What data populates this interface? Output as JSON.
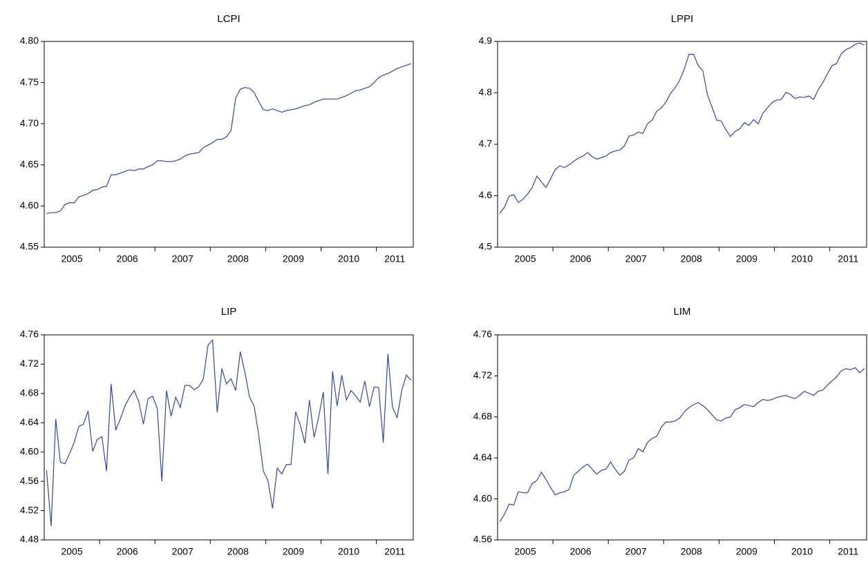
{
  "chart_data": [
    {
      "type": "line",
      "title": "LCPI",
      "color": "#33479a",
      "categories": [
        null,
        null,
        null,
        null,
        null,
        "2005",
        null,
        null,
        null,
        null,
        null,
        null,
        null,
        null,
        null,
        null,
        null,
        "2006",
        null,
        null,
        null,
        null,
        null,
        null,
        null,
        null,
        null,
        null,
        null,
        "2007",
        null,
        null,
        null,
        null,
        null,
        null,
        null,
        null,
        null,
        null,
        null,
        "2008",
        null,
        null,
        null,
        null,
        null,
        null,
        null,
        null,
        null,
        null,
        null,
        "2009",
        null,
        null,
        null,
        null,
        null,
        null,
        null,
        null,
        null,
        null,
        null,
        "2010",
        null,
        null,
        null,
        null,
        null,
        null,
        null,
        null,
        null,
        "2011",
        null,
        null,
        null,
        null
      ],
      "values": [
        4.591,
        4.592,
        4.592,
        4.594,
        4.602,
        4.604,
        4.604,
        4.611,
        4.613,
        4.615,
        4.619,
        4.62,
        4.623,
        4.624,
        4.638,
        4.638,
        4.64,
        4.642,
        4.644,
        4.643,
        4.645,
        4.645,
        4.648,
        4.65,
        4.655,
        4.655,
        4.654,
        4.654,
        4.655,
        4.657,
        4.661,
        4.663,
        4.664,
        4.665,
        4.671,
        4.674,
        4.677,
        4.681,
        4.681,
        4.684,
        4.692,
        4.731,
        4.742,
        4.744,
        4.743,
        4.738,
        4.727,
        4.717,
        4.716,
        4.718,
        4.716,
        4.714,
        4.716,
        4.717,
        4.718,
        4.72,
        4.722,
        4.723,
        4.726,
        4.728,
        4.73,
        4.73,
        4.73,
        4.73,
        4.732,
        4.734,
        4.737,
        4.74,
        4.741,
        4.743,
        4.745,
        4.75,
        4.756,
        4.759,
        4.761,
        4.764,
        4.767,
        4.769,
        4.771,
        4.773
      ],
      "ylim": [
        4.55,
        4.8
      ],
      "yticks": [
        4.55,
        {
          "value": 4.6,
          "label": "4.60"
        },
        4.65,
        {
          "value": 4.7,
          "label": "4.70"
        },
        4.75,
        {
          "value": 4.8,
          "label": "4.80"
        }
      ]
    },
    {
      "type": "line",
      "title": "LPPI",
      "color": "#33479a",
      "categories": [
        null,
        null,
        null,
        null,
        null,
        "2005",
        null,
        null,
        null,
        null,
        null,
        null,
        null,
        null,
        null,
        null,
        null,
        "2006",
        null,
        null,
        null,
        null,
        null,
        null,
        null,
        null,
        null,
        null,
        null,
        "2007",
        null,
        null,
        null,
        null,
        null,
        null,
        null,
        null,
        null,
        null,
        null,
        "2008",
        null,
        null,
        null,
        null,
        null,
        null,
        null,
        null,
        null,
        null,
        null,
        "2009",
        null,
        null,
        null,
        null,
        null,
        null,
        null,
        null,
        null,
        null,
        null,
        "2010",
        null,
        null,
        null,
        null,
        null,
        null,
        null,
        null,
        null,
        "2011",
        null,
        null,
        null,
        null
      ],
      "values": [
        4.566,
        4.578,
        4.599,
        4.602,
        4.587,
        4.593,
        4.603,
        4.616,
        4.638,
        4.627,
        4.616,
        4.633,
        4.651,
        4.658,
        4.655,
        4.66,
        4.667,
        4.673,
        4.677,
        4.684,
        4.676,
        4.671,
        4.674,
        4.677,
        4.684,
        4.687,
        4.689,
        4.697,
        4.716,
        4.718,
        4.724,
        4.721,
        4.74,
        4.747,
        4.764,
        4.771,
        4.782,
        4.799,
        4.81,
        4.825,
        4.847,
        4.875,
        4.875,
        4.853,
        4.843,
        4.796,
        4.772,
        4.747,
        4.745,
        4.728,
        4.715,
        4.725,
        4.73,
        4.742,
        4.737,
        4.748,
        4.74,
        4.76,
        4.771,
        4.781,
        4.786,
        4.787,
        4.801,
        4.797,
        4.789,
        4.792,
        4.791,
        4.794,
        4.787,
        4.806,
        4.82,
        4.837,
        4.853,
        4.857,
        4.876,
        4.884,
        4.888,
        4.894,
        4.897,
        4.893
      ],
      "ylim": [
        4.5,
        4.9
      ],
      "yticks": [
        4.5,
        4.6,
        4.7,
        4.8,
        4.9
      ]
    },
    {
      "type": "line",
      "title": "LIP",
      "color": "#33479a",
      "categories": [
        null,
        null,
        null,
        null,
        null,
        "2005",
        null,
        null,
        null,
        null,
        null,
        null,
        null,
        null,
        null,
        null,
        null,
        "2006",
        null,
        null,
        null,
        null,
        null,
        null,
        null,
        null,
        null,
        null,
        null,
        "2007",
        null,
        null,
        null,
        null,
        null,
        null,
        null,
        null,
        null,
        null,
        null,
        "2008",
        null,
        null,
        null,
        null,
        null,
        null,
        null,
        null,
        null,
        null,
        null,
        "2009",
        null,
        null,
        null,
        null,
        null,
        null,
        null,
        null,
        null,
        null,
        null,
        "2010",
        null,
        null,
        null,
        null,
        null,
        null,
        null,
        null,
        null,
        "2011",
        null,
        null,
        null,
        null
      ],
      "values": [
        4.575,
        4.499,
        4.645,
        4.586,
        4.584,
        4.598,
        4.613,
        4.635,
        4.638,
        4.656,
        4.601,
        4.617,
        4.621,
        4.574,
        4.693,
        4.63,
        4.645,
        4.663,
        4.675,
        4.684,
        4.669,
        4.638,
        4.673,
        4.676,
        4.66,
        4.56,
        4.684,
        4.649,
        4.675,
        4.661,
        4.691,
        4.691,
        4.685,
        4.689,
        4.7,
        4.746,
        4.753,
        4.654,
        4.714,
        4.693,
        4.7,
        4.684,
        4.737,
        4.709,
        4.675,
        4.663,
        4.623,
        4.574,
        4.561,
        4.523,
        4.578,
        4.57,
        4.583,
        4.583,
        4.655,
        4.637,
        4.612,
        4.671,
        4.62,
        4.648,
        4.682,
        4.57,
        4.71,
        4.663,
        4.705,
        4.671,
        4.684,
        4.677,
        4.668,
        4.697,
        4.662,
        4.689,
        4.688,
        4.613,
        4.734,
        4.661,
        4.647,
        4.684,
        4.705,
        4.698
      ],
      "ylim": [
        4.48,
        4.76
      ],
      "yticks": [
        4.48,
        4.52,
        4.56,
        {
          "value": 4.6,
          "label": "4.60"
        },
        4.64,
        4.68,
        4.72,
        4.76
      ]
    },
    {
      "type": "line",
      "title": "LIM",
      "color": "#33479a",
      "categories": [
        null,
        null,
        null,
        null,
        null,
        "2005",
        null,
        null,
        null,
        null,
        null,
        null,
        null,
        null,
        null,
        null,
        null,
        "2006",
        null,
        null,
        null,
        null,
        null,
        null,
        null,
        null,
        null,
        null,
        null,
        "2007",
        null,
        null,
        null,
        null,
        null,
        null,
        null,
        null,
        null,
        null,
        null,
        "2008",
        null,
        null,
        null,
        null,
        null,
        null,
        null,
        null,
        null,
        null,
        null,
        "2009",
        null,
        null,
        null,
        null,
        null,
        null,
        null,
        null,
        null,
        null,
        null,
        "2010",
        null,
        null,
        null,
        null,
        null,
        null,
        null,
        null,
        null,
        "2011",
        null,
        null,
        null,
        null
      ],
      "values": [
        4.578,
        4.585,
        4.595,
        4.594,
        4.607,
        4.606,
        4.606,
        4.615,
        4.618,
        4.626,
        4.619,
        4.611,
        4.604,
        4.606,
        4.607,
        4.609,
        4.623,
        4.627,
        4.631,
        4.634,
        4.629,
        4.624,
        4.628,
        4.629,
        4.636,
        4.629,
        4.623,
        4.627,
        4.638,
        4.64,
        4.649,
        4.646,
        4.655,
        4.659,
        4.661,
        4.67,
        4.675,
        4.675,
        4.676,
        4.679,
        4.685,
        4.689,
        4.692,
        4.694,
        4.691,
        4.687,
        4.682,
        4.677,
        4.676,
        4.679,
        4.68,
        4.687,
        4.689,
        4.692,
        4.691,
        4.69,
        4.694,
        4.697,
        4.696,
        4.697,
        4.699,
        4.7,
        4.701,
        4.699,
        4.698,
        4.701,
        4.705,
        4.703,
        4.701,
        4.705,
        4.706,
        4.711,
        4.715,
        4.719,
        4.725,
        4.727,
        4.726,
        4.728,
        4.723,
        4.727
      ],
      "ylim": [
        4.56,
        4.76
      ],
      "yticks": [
        4.56,
        {
          "value": 4.6,
          "label": "4.60"
        },
        4.64,
        4.68,
        4.72,
        4.76
      ]
    }
  ]
}
